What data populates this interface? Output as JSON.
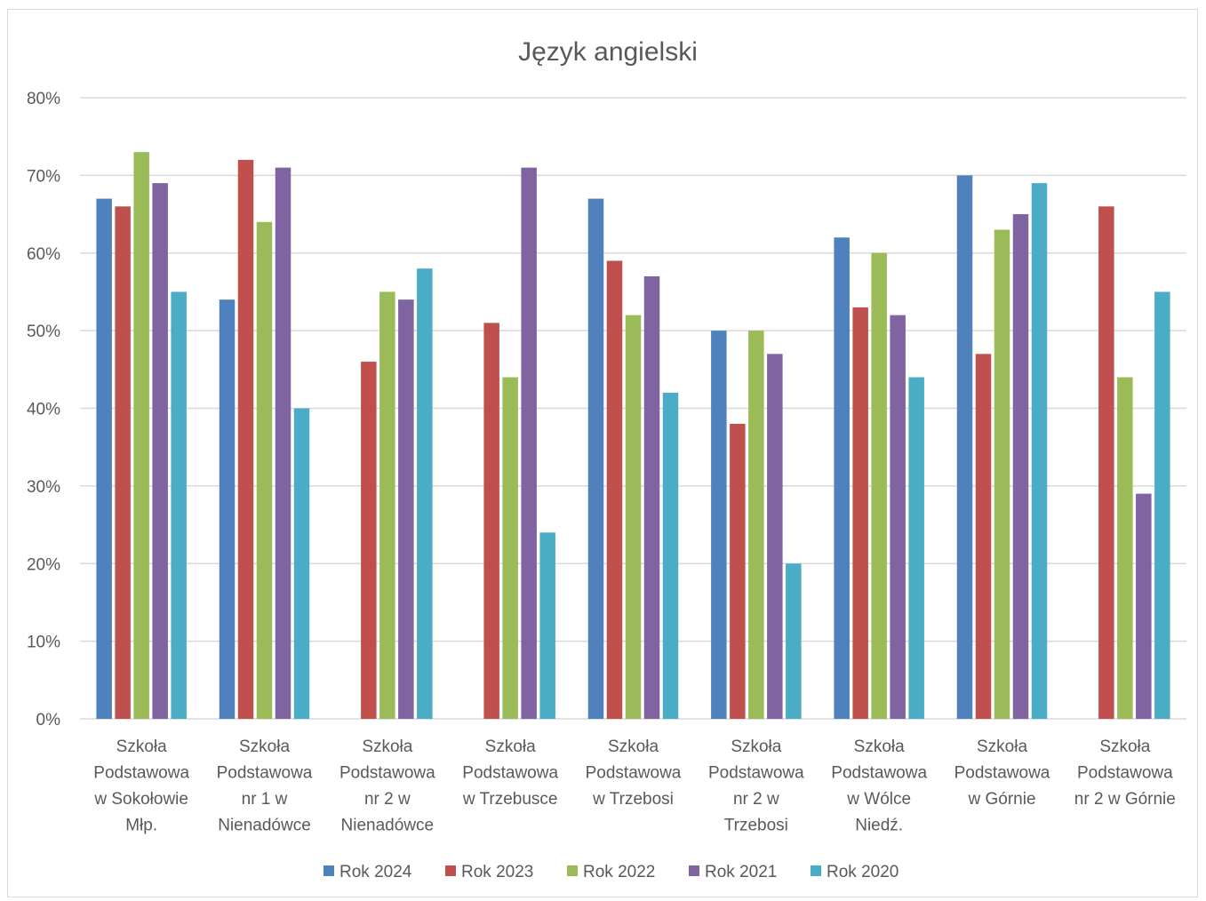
{
  "chart_data": {
    "type": "bar",
    "title": "Język angielski",
    "xlabel": "",
    "ylabel": "",
    "ylim": [
      0,
      80
    ],
    "y_unit": "%",
    "yticks": [
      "0%",
      "10%",
      "20%",
      "30%",
      "40%",
      "50%",
      "60%",
      "70%",
      "80%"
    ],
    "grid": true,
    "legend_position": "bottom",
    "categories": [
      [
        "Szkoła",
        "Podstawowa",
        "w Sokołowie",
        "Młp."
      ],
      [
        "Szkoła",
        "Podstawowa",
        "nr 1 w",
        "Nienadówce"
      ],
      [
        "Szkoła",
        "Podstawowa",
        "nr 2 w",
        "Nienadówce"
      ],
      [
        "Szkoła",
        "Podstawowa",
        "w Trzebusce"
      ],
      [
        "Szkoła",
        "Podstawowa",
        "w Trzebosi"
      ],
      [
        "Szkoła",
        "Podstawowa",
        "nr 2 w",
        "Trzebosi"
      ],
      [
        "Szkoła",
        "Podstawowa",
        "w Wólce",
        "Niedź."
      ],
      [
        "Szkoła",
        "Podstawowa",
        "w Górnie"
      ],
      [
        "Szkoła",
        "Podstawowa",
        "nr 2 w Górnie"
      ]
    ],
    "series": [
      {
        "name": "Rok 2024",
        "color": "#4f81bd",
        "values": [
          67,
          54,
          null,
          null,
          67,
          50,
          62,
          70,
          null
        ]
      },
      {
        "name": "Rok 2023",
        "color": "#c0504d",
        "values": [
          66,
          72,
          46,
          51,
          59,
          38,
          53,
          47,
          66
        ]
      },
      {
        "name": "Rok 2022",
        "color": "#9bbb59",
        "values": [
          73,
          64,
          55,
          44,
          52,
          50,
          60,
          63,
          44
        ]
      },
      {
        "name": "Rok 2021",
        "color": "#8064a2",
        "values": [
          69,
          71,
          54,
          71,
          57,
          47,
          52,
          65,
          29
        ]
      },
      {
        "name": "Rok 2020",
        "color": "#4bacc6",
        "values": [
          55,
          40,
          58,
          24,
          42,
          20,
          44,
          69,
          55
        ]
      }
    ]
  }
}
